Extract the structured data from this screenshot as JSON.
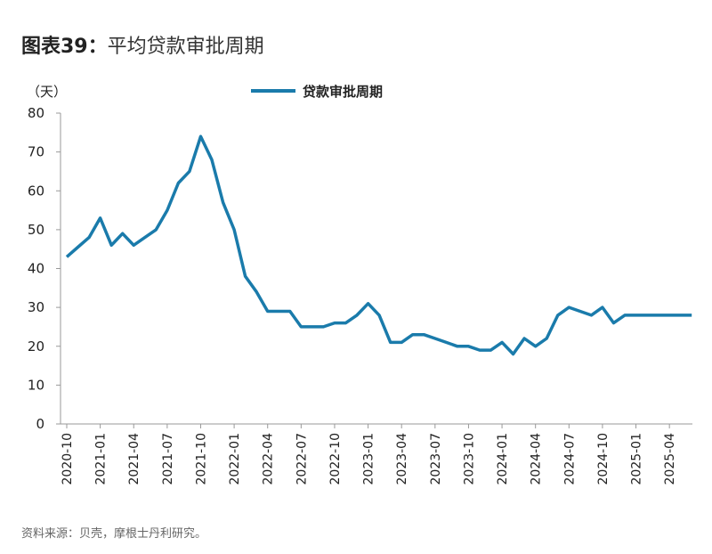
{
  "title_prefix": "图表39：",
  "title_main": "平均贷款审批周期",
  "source": "资料来源：贝壳，摩根士丹利研究。",
  "chart_data": {
    "type": "line",
    "title": "图表39：平均贷款审批周期",
    "ylabel": "（天）",
    "ylim": [
      0,
      80
    ],
    "yticks": [
      0,
      10,
      20,
      30,
      40,
      50,
      60,
      70,
      80
    ],
    "xticks": [
      "2020-10",
      "2021-01",
      "2021-04",
      "2021-07",
      "2021-10",
      "2022-01",
      "2022-04",
      "2022-07",
      "2022-10",
      "2023-01",
      "2023-04",
      "2023-07",
      "2023-10",
      "2024-01",
      "2024-04",
      "2024-07",
      "2024-10",
      "2025-01",
      "2025-04"
    ],
    "legend": "top-center",
    "grid": false,
    "color": "#1a7bab",
    "x": [
      "2020-10",
      "2020-11",
      "2020-12",
      "2021-01",
      "2021-02",
      "2021-03",
      "2021-04",
      "2021-05",
      "2021-06",
      "2021-07",
      "2021-08",
      "2021-09",
      "2021-10",
      "2021-11",
      "2021-12",
      "2022-01",
      "2022-02",
      "2022-03",
      "2022-04",
      "2022-05",
      "2022-06",
      "2022-07",
      "2022-08",
      "2022-09",
      "2022-10",
      "2022-11",
      "2022-12",
      "2023-01",
      "2023-02",
      "2023-03",
      "2023-04",
      "2023-05",
      "2023-06",
      "2023-07",
      "2023-08",
      "2023-09",
      "2023-10",
      "2023-11",
      "2023-12",
      "2024-01",
      "2024-02",
      "2024-03",
      "2024-04",
      "2024-05",
      "2024-06",
      "2024-07",
      "2024-08",
      "2024-09",
      "2024-10",
      "2024-11",
      "2024-12",
      "2025-01",
      "2025-02",
      "2025-03",
      "2025-04",
      "2025-05",
      "2025-06"
    ],
    "series": [
      {
        "name": "贷款审批周期",
        "values": [
          43,
          45.5,
          48,
          53,
          46,
          49,
          46,
          48,
          50,
          55,
          62,
          65,
          74,
          68,
          57,
          50,
          38,
          34,
          29,
          29,
          29,
          25,
          25,
          25,
          26,
          26,
          28,
          31,
          28,
          21,
          21,
          23,
          23,
          22,
          21,
          20,
          20,
          19,
          19,
          21,
          18,
          22,
          20,
          22,
          28,
          30,
          29,
          28,
          30,
          26,
          28,
          28,
          28,
          28,
          28,
          28,
          28
        ]
      }
    ]
  }
}
